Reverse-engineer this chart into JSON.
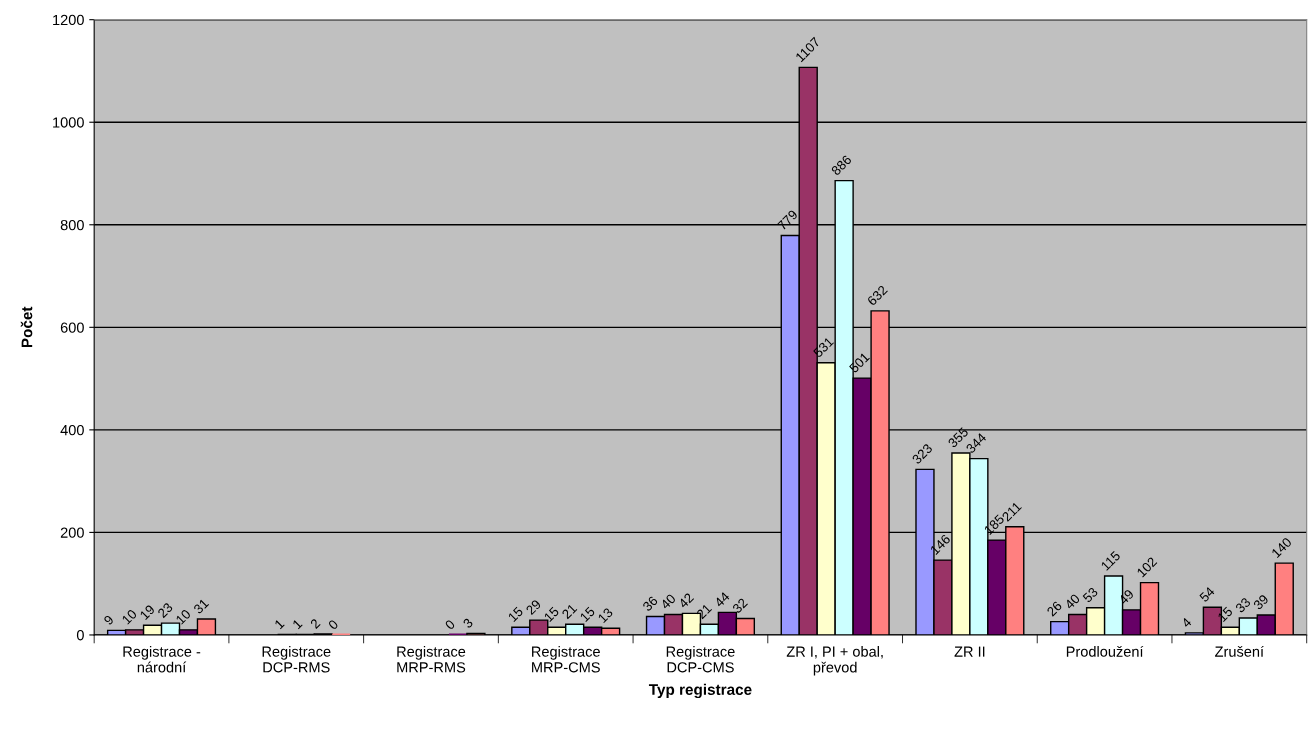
{
  "chart_data": {
    "type": "bar",
    "xlabel": "Typ registrace",
    "ylabel": "Počet",
    "categories": [
      "Registrace -\nnárodní",
      "Registrace\nDCP-RMS",
      "Registrace\nMRP-RMS",
      "Registrace\nMRP-CMS",
      "Registrace\nDCP-CMS",
      "ZR I, PI + obal,\npřevod",
      "ZR II",
      "Prodloužení",
      "Zrušení"
    ],
    "series": [
      {
        "color": "#9999ff",
        "values": [
          9,
          null,
          null,
          15,
          36,
          779,
          323,
          26,
          4
        ]
      },
      {
        "color": "#993366",
        "values": [
          10,
          null,
          null,
          29,
          40,
          1107,
          146,
          40,
          54
        ]
      },
      {
        "color": "#ffffcc",
        "values": [
          19,
          1,
          null,
          15,
          42,
          531,
          355,
          53,
          15
        ]
      },
      {
        "color": "#ccffff",
        "values": [
          23,
          1,
          null,
          21,
          21,
          886,
          344,
          115,
          33
        ]
      },
      {
        "color": "#660066",
        "values": [
          10,
          2,
          0,
          15,
          44,
          501,
          185,
          49,
          39
        ]
      },
      {
        "color": "#ff8080",
        "values": [
          31,
          0,
          3,
          13,
          32,
          632,
          211,
          102,
          140
        ]
      }
    ],
    "ylim": [
      0,
      1200
    ],
    "yticks": [
      0,
      200,
      400,
      600,
      800,
      1000,
      1200
    ],
    "grid": "y",
    "data_labels": true
  }
}
